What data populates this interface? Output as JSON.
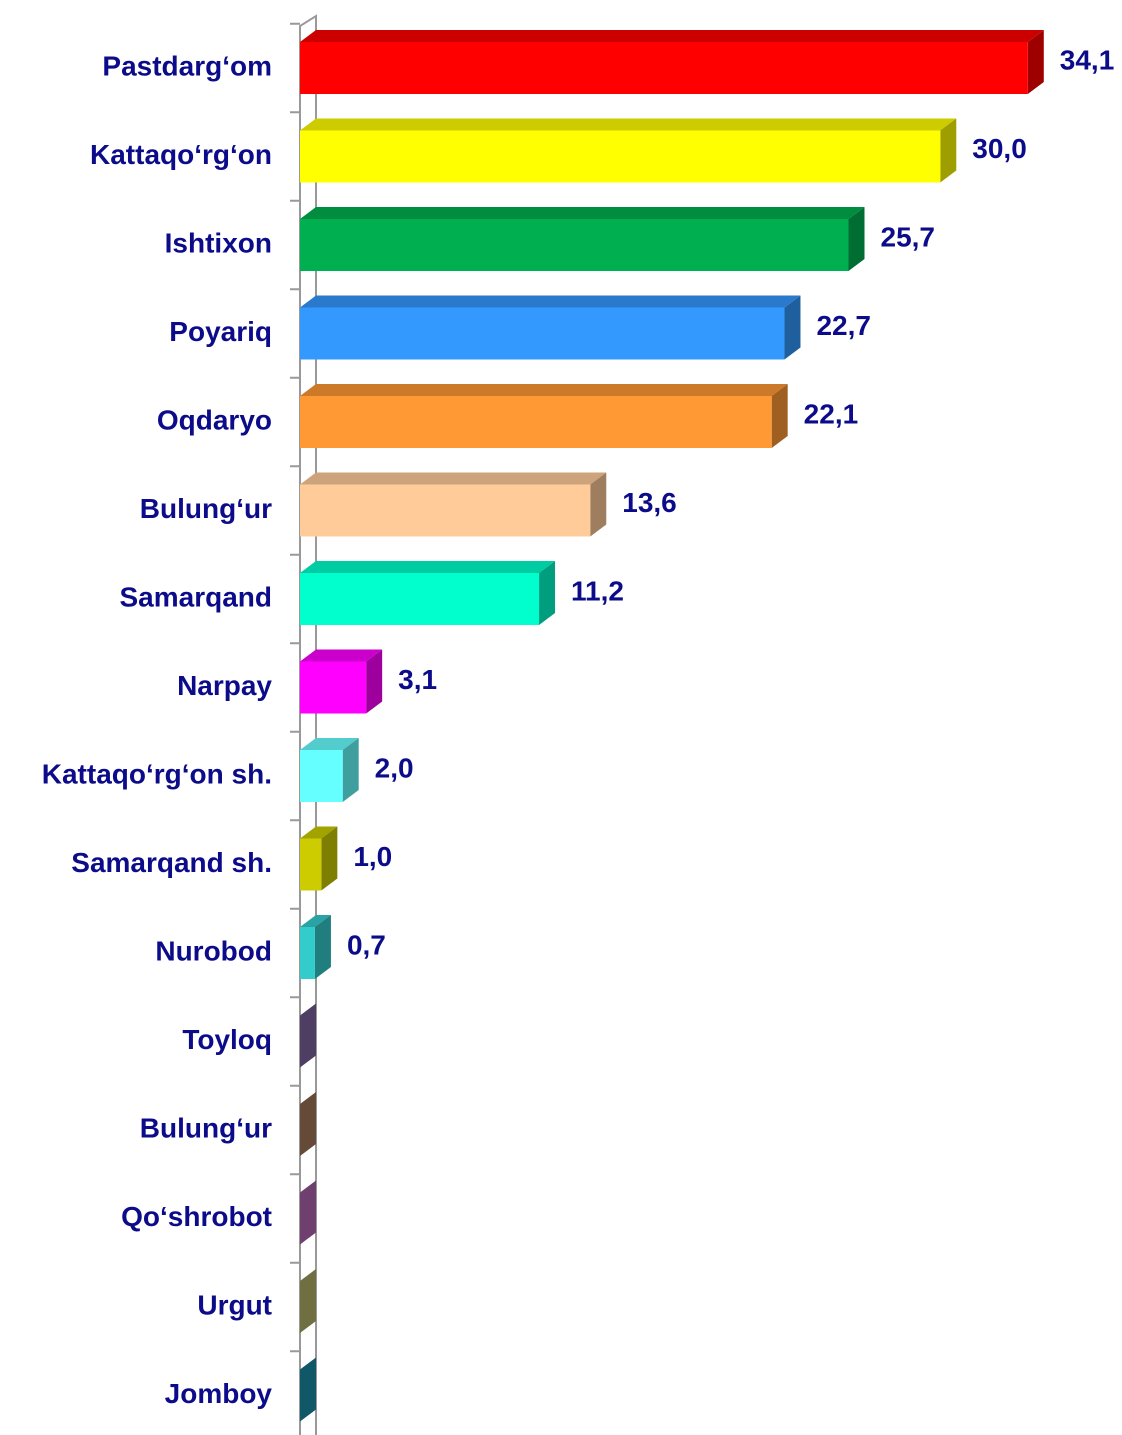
{
  "chart_data": {
    "type": "bar",
    "orientation": "horizontal",
    "categories": [
      "Pastdarg‘om",
      "Kattaqo‘rg‘on",
      "Ishtixon",
      "Poyariq",
      "Oqdaryo",
      "Bulung‘ur",
      "Samarqand",
      "Narpay",
      "Kattaqo‘rg‘on sh.",
      "Samarqand sh.",
      "Nurobod",
      "Toyloq",
      "Bulung‘ur",
      "Qo‘shrobot",
      "Urgut",
      "Jomboy"
    ],
    "values": [
      34.1,
      30.0,
      25.7,
      22.7,
      22.1,
      13.6,
      11.2,
      3.1,
      2.0,
      1.0,
      0.7,
      0,
      0,
      0,
      0,
      0
    ],
    "value_labels": [
      "34,1",
      "30,0",
      "25,7",
      "22,7",
      "22,1",
      "13,6",
      "11,2",
      "3,1",
      "2,0",
      "1,0",
      "0,7",
      null,
      null,
      null,
      null,
      null
    ],
    "colors": [
      "#ff0000",
      "#ffff00",
      "#00b050",
      "#3399ff",
      "#ff9933",
      "#ffcc99",
      "#00ffcc",
      "#ff00ff",
      "#66ffff",
      "#cccc00",
      "#33cccc",
      "#8064a2",
      "#a5785a",
      "#b366b3",
      "#b3b36b",
      "#1a8ca8"
    ],
    "xlim": [
      0,
      35
    ]
  }
}
